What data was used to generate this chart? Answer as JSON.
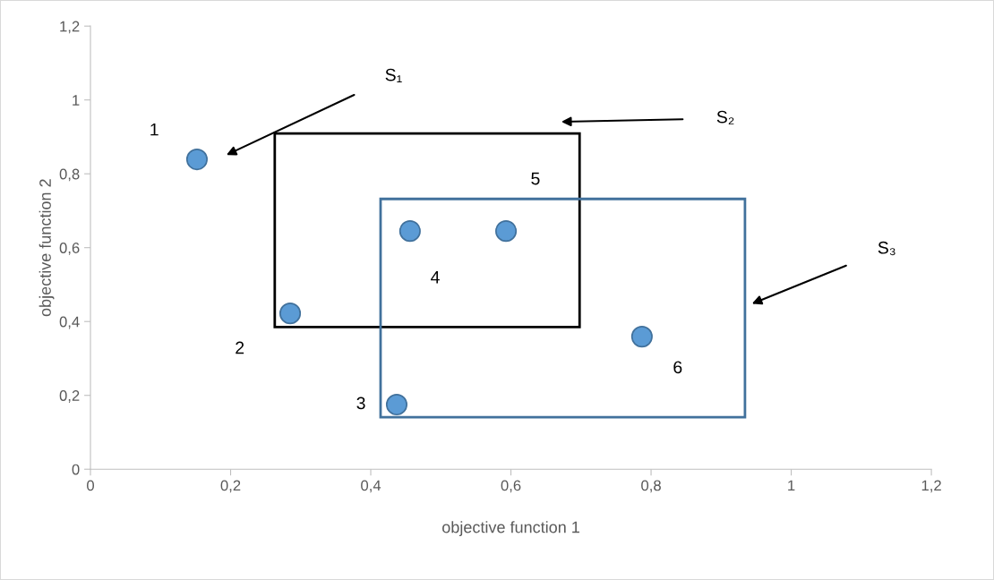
{
  "chart_data": {
    "type": "scatter",
    "xlabel": "objective function 1",
    "ylabel": "objective function 2",
    "x": [
      0.152,
      0.285,
      0.437,
      0.456,
      0.593,
      0.787
    ],
    "series": [
      {
        "color": "#5b9bd5",
        "values": [
          0.839,
          0.422,
          0.175,
          0.645,
          0.645,
          0.359
        ]
      }
    ],
    "marker": "circle",
    "xlim": [
      0,
      1.2
    ],
    "ylim": [
      0,
      1.2
    ],
    "xticks": [
      0,
      {
        "value": 0.2,
        "label": "0,2"
      },
      {
        "value": 0.4,
        "label": "0,4"
      },
      {
        "value": 0.6,
        "label": "0,6"
      },
      {
        "value": 0.8,
        "label": "0,8"
      },
      1,
      {
        "value": 1.2,
        "label": "1,2"
      }
    ],
    "yticks": [
      0,
      {
        "value": 0.2,
        "label": "0,2"
      },
      {
        "value": 0.4,
        "label": "0,4"
      },
      {
        "value": 0.6,
        "label": "0,6"
      },
      {
        "value": 0.8,
        "label": "0,8"
      },
      1,
      {
        "value": 1.2,
        "label": "1,2"
      }
    ],
    "grid": false,
    "legend": false,
    "annotations": [
      "1",
      "2",
      "3",
      "4",
      "5",
      "6",
      "S₁",
      "S₂",
      "S₃"
    ]
  }
}
